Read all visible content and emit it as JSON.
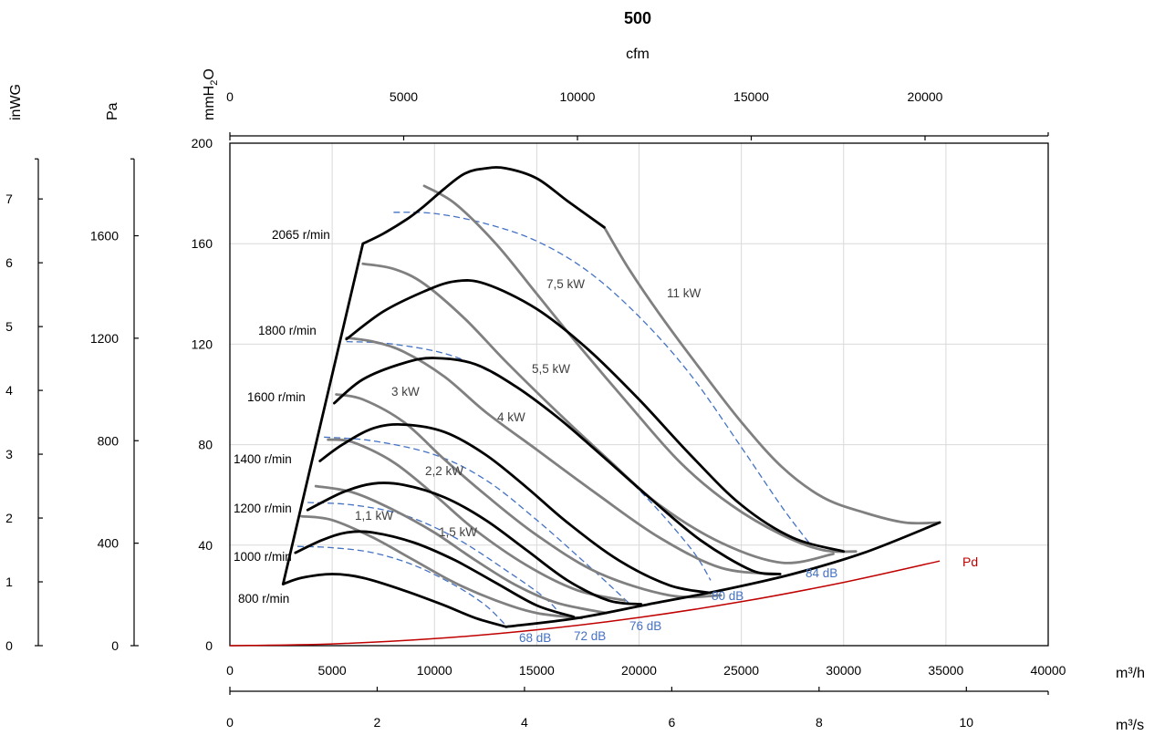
{
  "chart_data": {
    "type": "line",
    "title": "500",
    "primary_x": {
      "unit": "m³/h",
      "range": [
        0,
        40000
      ],
      "ticks": [
        0,
        5000,
        10000,
        15000,
        20000,
        25000,
        30000,
        35000,
        40000
      ]
    },
    "secondary_x_top": {
      "unit": "cfm",
      "ticks": [
        0,
        5000,
        10000,
        15000,
        20000
      ]
    },
    "secondary_x_bottom": {
      "unit": "m³/s",
      "ticks": [
        0,
        2,
        4,
        6,
        8,
        10
      ]
    },
    "primary_y": {
      "unit": "mmH₂O",
      "range": [
        0,
        200
      ],
      "ticks": [
        0,
        40,
        80,
        120,
        160,
        200
      ]
    },
    "left_axis_pa": {
      "unit": "Pa",
      "ticks": [
        0,
        400,
        800,
        1200,
        1600
      ]
    },
    "left_axis_inwg": {
      "unit": "inWG",
      "ticks": [
        0,
        1,
        2,
        3,
        4,
        5,
        6,
        7
      ]
    },
    "grid": true,
    "speed_curves": [
      {
        "label": "800 r/min",
        "points": [
          [
            2600,
            24.5
          ],
          [
            3500,
            27
          ],
          [
            5000,
            28.5
          ],
          [
            6500,
            27
          ],
          [
            8500,
            22
          ],
          [
            10500,
            16
          ],
          [
            12000,
            11
          ],
          [
            13500,
            7.5
          ]
        ]
      },
      {
        "label": "1000 r/min",
        "points": [
          [
            3200,
            37
          ],
          [
            4500,
            42
          ],
          [
            5700,
            45
          ],
          [
            7000,
            45
          ],
          [
            9000,
            41
          ],
          [
            11000,
            34
          ],
          [
            13000,
            25
          ],
          [
            15000,
            16
          ],
          [
            16800,
            11.5
          ]
        ]
      },
      {
        "label": "1200 r/min",
        "points": [
          [
            3800,
            54
          ],
          [
            5500,
            61
          ],
          [
            7000,
            64.5
          ],
          [
            8500,
            64
          ],
          [
            10500,
            59
          ],
          [
            12500,
            50
          ],
          [
            14500,
            38
          ],
          [
            16500,
            26
          ],
          [
            18500,
            18
          ],
          [
            20100,
            16.5
          ]
        ]
      },
      {
        "label": "1400 r/min",
        "points": [
          [
            4400,
            73.5
          ],
          [
            5500,
            80
          ],
          [
            7000,
            86.5
          ],
          [
            8500,
            88
          ],
          [
            10500,
            85
          ],
          [
            12500,
            76
          ],
          [
            14500,
            63
          ],
          [
            16500,
            49
          ],
          [
            19000,
            34
          ],
          [
            21500,
            24
          ],
          [
            23500,
            21
          ]
        ]
      },
      {
        "label": "1600 r/min",
        "points": [
          [
            5100,
            96.5
          ],
          [
            6500,
            106
          ],
          [
            8500,
            112.5
          ],
          [
            10000,
            114.5
          ],
          [
            12000,
            112
          ],
          [
            14000,
            103
          ],
          [
            16000,
            91
          ],
          [
            18000,
            77
          ],
          [
            20500,
            59
          ],
          [
            23000,
            42
          ],
          [
            25500,
            30
          ],
          [
            26900,
            28.5
          ]
        ]
      },
      {
        "label": "1800 r/min",
        "points": [
          [
            5700,
            122
          ],
          [
            7500,
            133
          ],
          [
            9500,
            141
          ],
          [
            11000,
            145
          ],
          [
            12500,
            144
          ],
          [
            15000,
            134
          ],
          [
            17500,
            118
          ],
          [
            20000,
            98
          ],
          [
            22500,
            76
          ],
          [
            25000,
            56
          ],
          [
            27500,
            43
          ],
          [
            30000,
            37.5
          ]
        ]
      },
      {
        "label": "2065 r/min",
        "points": [
          [
            6500,
            160
          ],
          [
            7500,
            164
          ],
          [
            8700,
            170
          ],
          [
            9500,
            175
          ],
          [
            10500,
            182
          ],
          [
            11500,
            188
          ],
          [
            12500,
            190
          ],
          [
            13500,
            190
          ],
          [
            15000,
            186
          ],
          [
            16500,
            177
          ],
          [
            18300,
            166.5
          ]
        ]
      },
      {
        "label": "",
        "points": [
          [
            2600,
            24.5
          ],
          [
            6500,
            160
          ]
        ]
      },
      {
        "label": "",
        "points": [
          [
            13500,
            7.5
          ],
          [
            17000,
            11
          ],
          [
            20500,
            16.5
          ],
          [
            24000,
            22
          ],
          [
            27500,
            28.5
          ],
          [
            31000,
            37
          ],
          [
            34700,
            49
          ]
        ]
      }
    ],
    "power_curves": [
      {
        "label": "1,1 kW",
        "points": [
          [
            3500,
            51.5
          ],
          [
            5000,
            50
          ],
          [
            7000,
            43
          ],
          [
            9000,
            34
          ],
          [
            11000,
            25
          ],
          [
            13000,
            18
          ],
          [
            15000,
            13
          ],
          [
            17200,
            11
          ]
        ]
      },
      {
        "label": "1,5 kW",
        "points": [
          [
            4200,
            63.5
          ],
          [
            6000,
            61
          ],
          [
            8000,
            54
          ],
          [
            10000,
            45
          ],
          [
            12000,
            34
          ],
          [
            14000,
            24
          ],
          [
            16000,
            17
          ],
          [
            18400,
            13
          ]
        ]
      },
      {
        "label": "2,2 kW",
        "points": [
          [
            4800,
            82
          ],
          [
            6000,
            81
          ],
          [
            8000,
            73
          ],
          [
            10000,
            60
          ],
          [
            12000,
            46
          ],
          [
            14500,
            32
          ],
          [
            17000,
            22
          ],
          [
            19300,
            18
          ]
        ]
      },
      {
        "label": "3 kW",
        "points": [
          [
            5200,
            100
          ],
          [
            6500,
            98
          ],
          [
            8500,
            89
          ],
          [
            10500,
            74
          ],
          [
            12500,
            60
          ],
          [
            15000,
            44
          ],
          [
            18000,
            29
          ],
          [
            21500,
            20
          ],
          [
            24000,
            20
          ]
        ]
      },
      {
        "label": "4 kW",
        "points": [
          [
            5700,
            122.5
          ],
          [
            7000,
            121
          ],
          [
            8500,
            117
          ],
          [
            10500,
            107
          ],
          [
            12500,
            93
          ],
          [
            15000,
            78
          ],
          [
            18000,
            60
          ],
          [
            21000,
            43
          ],
          [
            24000,
            31
          ],
          [
            26800,
            28.5
          ]
        ]
      },
      {
        "label": "5,5 kW",
        "points": [
          [
            6500,
            152
          ],
          [
            8000,
            150
          ],
          [
            9500,
            144
          ],
          [
            11500,
            130
          ],
          [
            13500,
            113
          ],
          [
            16000,
            93
          ],
          [
            18500,
            74
          ],
          [
            21000,
            56
          ],
          [
            24000,
            41
          ],
          [
            27000,
            33
          ],
          [
            29500,
            36.5
          ]
        ]
      },
      {
        "label": "7,5 kW",
        "points": [
          [
            9500,
            183
          ],
          [
            11000,
            176
          ],
          [
            13000,
            160
          ],
          [
            15000,
            140
          ],
          [
            17000,
            120
          ],
          [
            19500,
            96
          ],
          [
            22000,
            73
          ],
          [
            24500,
            56
          ],
          [
            27000,
            44
          ],
          [
            29000,
            38
          ],
          [
            30600,
            37.5
          ]
        ]
      },
      {
        "label": "11 kW",
        "points": [
          [
            18300,
            166.5
          ],
          [
            19500,
            150
          ],
          [
            21000,
            132
          ],
          [
            23000,
            110
          ],
          [
            25000,
            89
          ],
          [
            27000,
            71
          ],
          [
            29000,
            59
          ],
          [
            31000,
            53
          ],
          [
            33000,
            49
          ],
          [
            34700,
            49
          ]
        ]
      }
    ],
    "sound_curves": [
      {
        "label": "68 dB",
        "points": [
          [
            3300,
            39.5
          ],
          [
            5000,
            39
          ],
          [
            7000,
            37
          ],
          [
            9000,
            32
          ],
          [
            11000,
            24
          ],
          [
            12500,
            16
          ],
          [
            13500,
            8
          ]
        ]
      },
      {
        "label": "72 dB",
        "points": [
          [
            3800,
            57
          ],
          [
            6000,
            56
          ],
          [
            8500,
            52
          ],
          [
            11000,
            43
          ],
          [
            13500,
            30
          ],
          [
            15400,
            19
          ],
          [
            16200,
            12
          ]
        ]
      },
      {
        "label": "76 dB",
        "points": [
          [
            4600,
            83
          ],
          [
            7000,
            81.5
          ],
          [
            10000,
            76
          ],
          [
            12500,
            66
          ],
          [
            15000,
            50
          ],
          [
            17500,
            32
          ],
          [
            19500,
            17
          ]
        ]
      },
      {
        "label": "80 dB",
        "points": [
          [
            5700,
            121
          ],
          [
            8000,
            120
          ],
          [
            11000,
            115
          ],
          [
            14000,
            103
          ],
          [
            17000,
            84
          ],
          [
            20000,
            62
          ],
          [
            22500,
            39
          ],
          [
            23500,
            26
          ]
        ]
      },
      {
        "label": "84 dB",
        "points": [
          [
            8000,
            172.5
          ],
          [
            10000,
            172
          ],
          [
            12500,
            168
          ],
          [
            15000,
            161
          ],
          [
            17500,
            149
          ],
          [
            20000,
            131
          ],
          [
            22500,
            108
          ],
          [
            25000,
            79
          ],
          [
            27000,
            55
          ],
          [
            28400,
            40
          ]
        ]
      }
    ],
    "pd_curve": {
      "label": "Pd",
      "points": [
        [
          0,
          0
        ],
        [
          5000,
          0.7
        ],
        [
          10000,
          2.8
        ],
        [
          15000,
          6.3
        ],
        [
          20000,
          11.2
        ],
        [
          25000,
          17.5
        ],
        [
          30000,
          25.2
        ],
        [
          34700,
          33.7
        ]
      ]
    },
    "curve_labels": {
      "rpm": [
        "2065 r/min",
        "1800 r/min",
        "1600 r/min",
        "1400 r/min",
        "1200 r/min",
        "1000 r/min",
        "800 r/min"
      ],
      "kw": [
        "7,5 kW",
        "11 kW",
        "5,5 kW",
        "3 kW",
        "4 kW",
        "2,2 kW",
        "1,1 kW",
        "1,5 kW"
      ],
      "db": [
        "84 dB",
        "80 dB",
        "76 dB",
        "72 dB",
        "68 dB"
      ],
      "pd": "Pd"
    },
    "colors": {
      "speed": "#000000",
      "power": "#808080",
      "sound": "#4472C4",
      "pd": "#C00000",
      "grid": "#D9D9D9"
    }
  }
}
